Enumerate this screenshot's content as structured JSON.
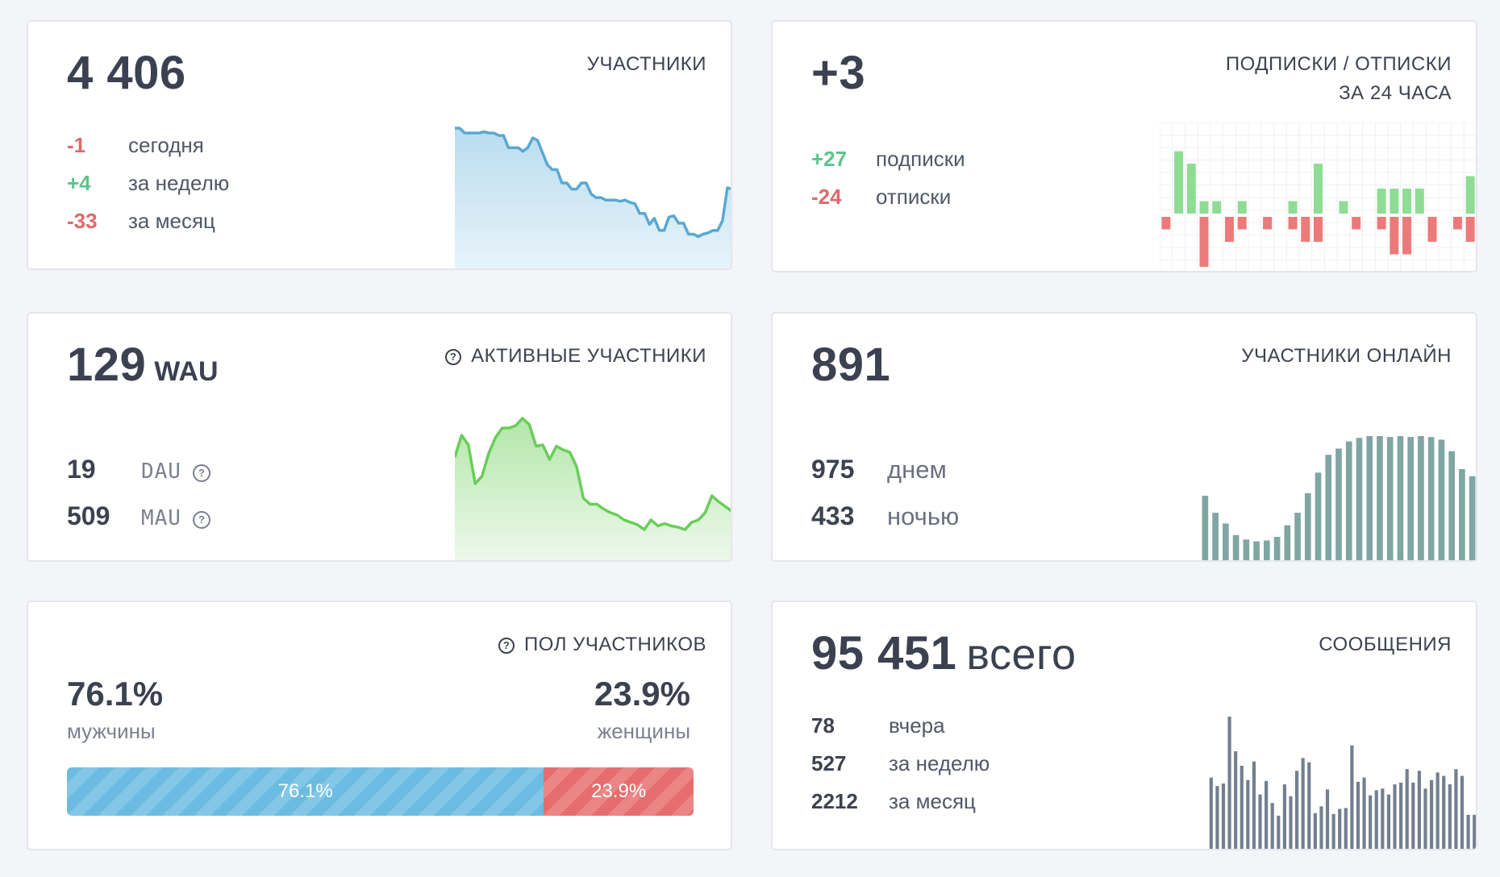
{
  "participants": {
    "value": "4 406",
    "title": "УЧАСТНИКИ",
    "stats": [
      {
        "value": "-1",
        "label": "сегодня",
        "tone": "red"
      },
      {
        "value": "+4",
        "label": "за неделю",
        "tone": "green"
      },
      {
        "value": "-33",
        "label": "за месяц",
        "tone": "red"
      }
    ],
    "trend": [
      90,
      90,
      86,
      86,
      86,
      86,
      87,
      86,
      86,
      84,
      84,
      74,
      74,
      74,
      71,
      74,
      82,
      80,
      70,
      60,
      56,
      56,
      45,
      45,
      40,
      40,
      45,
      45,
      36,
      33,
      33,
      31,
      31,
      31,
      30,
      31,
      29,
      28,
      20,
      20,
      11,
      16,
      6,
      6,
      17,
      18,
      12,
      12,
      3,
      3,
      1,
      3,
      4,
      6,
      6,
      14,
      41,
      40
    ]
  },
  "subscriptions": {
    "value": "+3",
    "title_line1": "ПОДПИСКИ / ОТПИСКИ",
    "title_line2": "ЗА 24 ЧАСА",
    "stats": [
      {
        "value": "+27",
        "label": "подписки",
        "tone": "green"
      },
      {
        "value": "-24",
        "label": "отписки",
        "tone": "red"
      }
    ],
    "subs": [
      0,
      5,
      4,
      1,
      1,
      0,
      1,
      0,
      0,
      0,
      1,
      0,
      4,
      0,
      1,
      0,
      0,
      2,
      2,
      2,
      2,
      0,
      0,
      0,
      3
    ],
    "unsubs": [
      1,
      0,
      0,
      4,
      0,
      2,
      1,
      0,
      1,
      0,
      1,
      2,
      2,
      0,
      0,
      1,
      0,
      1,
      3,
      3,
      0,
      2,
      0,
      1,
      2
    ],
    "colors": {
      "subs": "#8fdc95",
      "unsubs": "#ed7a7a"
    }
  },
  "active": {
    "value": "129",
    "unit": "WAU",
    "title": "АКТИВНЫЕ УЧАСТНИКИ",
    "q_icon": "?",
    "stats": [
      {
        "value": "19",
        "label": "DAU"
      },
      {
        "value": "509",
        "label": "MAU"
      }
    ],
    "trend": [
      60,
      78,
      70,
      38,
      44,
      63,
      76,
      84,
      84,
      86,
      92,
      87,
      69,
      70,
      58,
      69,
      66,
      64,
      52,
      26,
      21,
      21,
      17,
      14,
      12,
      8,
      6,
      4,
      0,
      8,
      3,
      5,
      3,
      2,
      0,
      6,
      8,
      14,
      28,
      23,
      19,
      15
    ]
  },
  "online": {
    "value": "891",
    "title": "УЧАСТНИКИ ОНЛАЙН",
    "stats": [
      {
        "value": "975",
        "label": "днем"
      },
      {
        "value": "433",
        "label": "ночью"
      }
    ],
    "bars": [
      74,
      55,
      43,
      30,
      25,
      23,
      24,
      28,
      41,
      55,
      77,
      100,
      120,
      127,
      135,
      139,
      141,
      141,
      140,
      141,
      140,
      141,
      140,
      137,
      124,
      104,
      96
    ],
    "color": "#7fa6a3"
  },
  "gender": {
    "title": "ПОЛ УЧАСТНИКОВ",
    "male_pct": "76.1%",
    "male_label": "мужчины",
    "female_pct": "23.9%",
    "female_label": "женщины",
    "male_share": 76.1,
    "female_share": 23.9,
    "colors": {
      "male": "#6cbbe0",
      "female": "#e66d6d"
    }
  },
  "messages": {
    "value": "95 451",
    "unit": "всего",
    "title": "СООБЩЕНИЯ",
    "stats": [
      {
        "value": "78",
        "label": "вчера"
      },
      {
        "value": "527",
        "label": "за неделю"
      },
      {
        "value": "2212",
        "label": "за месяц"
      }
    ],
    "bars": [
      86,
      76,
      79,
      158,
      117,
      100,
      83,
      105,
      66,
      82,
      56,
      41,
      78,
      64,
      94,
      109,
      104,
      44,
      52,
      72,
      43,
      49,
      50,
      124,
      81,
      86,
      65,
      71,
      73,
      66,
      78,
      80,
      96,
      80,
      94,
      73,
      83,
      92,
      88,
      78,
      96,
      88,
      42,
      42
    ],
    "color": "#737f8e"
  }
}
